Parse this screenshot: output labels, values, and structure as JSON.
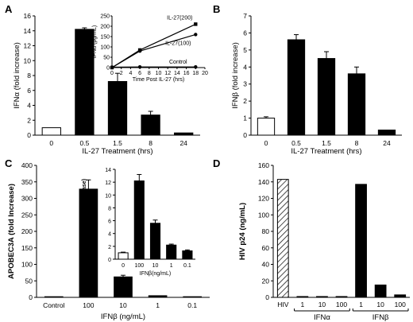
{
  "panels": {
    "A": {
      "label": "A"
    },
    "B": {
      "label": "B"
    },
    "C": {
      "label": "C"
    },
    "D": {
      "label": "D"
    }
  },
  "chart_data": [
    {
      "id": "A",
      "type": "bar",
      "title": "",
      "xlabel": "IL-27 Treatment (hrs)",
      "ylabel": "IFNα (fold increase)",
      "ylim": [
        0,
        16
      ],
      "yticks": [
        0,
        2,
        4,
        6,
        8,
        10,
        12,
        14,
        16
      ],
      "categories": [
        "0",
        "0.5",
        "1.5",
        "8",
        "24"
      ],
      "values": [
        1.0,
        14.2,
        7.2,
        2.7,
        0.3
      ],
      "errors": [
        0,
        0.2,
        1.1,
        0.5,
        0
      ],
      "open_bars": [
        0
      ],
      "inset": {
        "type": "line",
        "xlabel": "Time Post IL-27 (hrs)",
        "ylabel": "IFNα (pg/mL)",
        "xlim": [
          0,
          20
        ],
        "ylim": [
          0,
          250
        ],
        "xticks": [
          0,
          2,
          4,
          6,
          8,
          10,
          12,
          14,
          16,
          18,
          20
        ],
        "yticks": [
          0,
          50,
          100,
          150,
          200,
          250
        ],
        "series": [
          {
            "name": "IL-27(200)",
            "x": [
              0,
              6,
              18
            ],
            "y": [
              0,
              85,
              210
            ],
            "marker": "square"
          },
          {
            "name": "IL-27(100)",
            "x": [
              0,
              6,
              18
            ],
            "y": [
              0,
              80,
              160
            ],
            "marker": "circle"
          },
          {
            "name": "Control",
            "x": [
              0,
              6,
              18
            ],
            "y": [
              2,
              3,
              3
            ],
            "marker": "circle"
          }
        ]
      }
    },
    {
      "id": "B",
      "type": "bar",
      "title": "",
      "xlabel": "IL-27 Treatment (hrs)",
      "ylabel": "IFNβ (fold increase)",
      "ylim": [
        0,
        7
      ],
      "yticks": [
        0,
        1,
        2,
        3,
        4,
        5,
        6,
        7
      ],
      "categories": [
        "0",
        "0.5",
        "1.5",
        "8",
        "24"
      ],
      "values": [
        1.0,
        5.6,
        4.5,
        3.6,
        0.3
      ],
      "errors": [
        0.08,
        0.3,
        0.4,
        0.4,
        0
      ],
      "open_bars": [
        0
      ]
    },
    {
      "id": "C",
      "type": "bar",
      "title": "",
      "xlabel": "IFNβ (ng/mL)",
      "ylabel": "APOBEC3A (fold Increase)",
      "ylim": [
        0,
        400
      ],
      "yticks": [
        0,
        50,
        100,
        150,
        200,
        250,
        300,
        350,
        400
      ],
      "categories": [
        "Control",
        "100",
        "10",
        "1",
        "0.1"
      ],
      "values": [
        2,
        328,
        62,
        5,
        2
      ],
      "errors": [
        0,
        28,
        5,
        0,
        0
      ],
      "open_bars": [],
      "inset": {
        "type": "bar",
        "xlabel": "IFNβ(ng/mL)",
        "ylabel": "APOBEC3G (fold increase)",
        "ylim": [
          0,
          14
        ],
        "yticks": [
          0,
          2,
          4,
          6,
          8,
          10,
          12,
          14
        ],
        "categories": [
          "0",
          "100",
          "10",
          "1",
          "0.1"
        ],
        "values": [
          1.0,
          12.2,
          5.6,
          2.2,
          1.3
        ],
        "errors": [
          0.1,
          1.0,
          0.5,
          0.15,
          0.15
        ],
        "open_bars": [
          0
        ]
      }
    },
    {
      "id": "D",
      "type": "bar",
      "title": "",
      "xlabel": "",
      "ylabel": "HIV p24 (ng/mL)",
      "ylim": [
        0,
        160
      ],
      "yticks": [
        0,
        20,
        40,
        60,
        80,
        100,
        120,
        140,
        160
      ],
      "categories": [
        "HIV",
        "1",
        "10",
        "100",
        "1",
        "10",
        "100"
      ],
      "values": [
        143,
        1,
        1,
        1,
        137,
        15,
        3
      ],
      "groups": [
        {
          "label": "IFNα",
          "from": 1,
          "to": 3
        },
        {
          "label": "IFNβ",
          "from": 4,
          "to": 6
        }
      ],
      "hatched_bars": [
        0
      ]
    }
  ]
}
